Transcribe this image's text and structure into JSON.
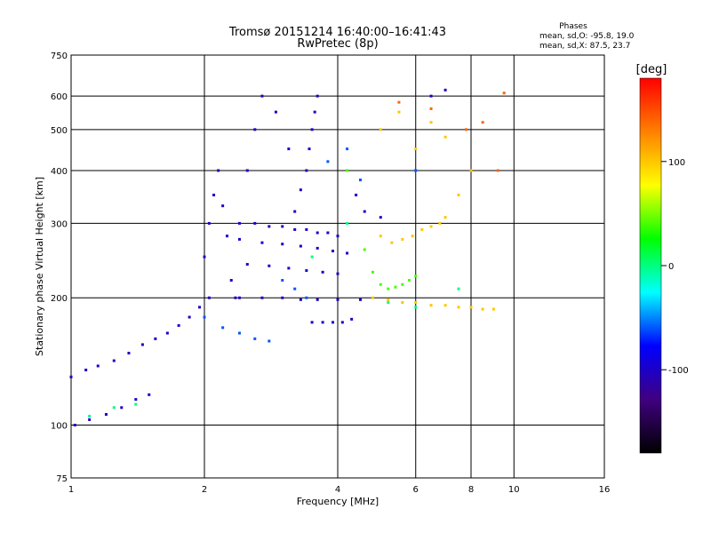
{
  "chart_data": {
    "type": "scatter",
    "title": "Tromsø 20151214 16:40:00–16:41:43",
    "subtitle": "RwPretec (8p)",
    "xlabel": "Frequency [MHz]",
    "ylabel": "Stationary phase Virtual Height [km]",
    "x_scale": "log",
    "y_scale": "log",
    "xlim": [
      1,
      16
    ],
    "ylim": [
      75,
      750
    ],
    "x_ticks": [
      1,
      2,
      4,
      6,
      8,
      10,
      16
    ],
    "y_ticks": [
      75,
      100,
      200,
      300,
      400,
      500,
      600,
      750
    ],
    "grid": true,
    "phases_header": "Phases",
    "phases_lines": [
      "mean, sd,O:  -95.8, 19.0",
      "mean, sd,X:   87.5, 23.7"
    ],
    "colorbar": {
      "label": "[deg]",
      "range": [
        -180,
        180
      ],
      "ticks": [
        100,
        0,
        -100
      ],
      "colormap": [
        "#ff0000",
        "#ff8000",
        "#ffff00",
        "#00ff00",
        "#00ffff",
        "#0000ff",
        "#400080",
        "#000000"
      ]
    },
    "series": [
      {
        "phase_deg": -100,
        "points": [
          [
            1.0,
            130
          ],
          [
            1.08,
            135
          ],
          [
            1.15,
            138
          ],
          [
            1.25,
            142
          ],
          [
            1.35,
            148
          ],
          [
            1.45,
            155
          ],
          [
            1.55,
            160
          ],
          [
            1.65,
            165
          ],
          [
            1.75,
            172
          ],
          [
            1.85,
            180
          ],
          [
            1.95,
            190
          ],
          [
            2.05,
            200
          ],
          [
            1.02,
            100
          ],
          [
            1.1,
            103
          ],
          [
            1.2,
            106
          ],
          [
            1.3,
            110
          ],
          [
            1.4,
            115
          ],
          [
            1.5,
            118
          ],
          [
            2.0,
            250
          ],
          [
            2.05,
            300
          ],
          [
            2.1,
            350
          ],
          [
            2.15,
            400
          ],
          [
            2.2,
            330
          ],
          [
            2.25,
            280
          ],
          [
            2.3,
            220
          ],
          [
            2.35,
            200
          ],
          [
            2.4,
            300
          ],
          [
            2.6,
            300
          ],
          [
            2.8,
            295
          ],
          [
            3.0,
            295
          ],
          [
            3.2,
            290
          ],
          [
            3.4,
            290
          ],
          [
            3.6,
            285
          ],
          [
            3.8,
            285
          ],
          [
            4.0,
            280
          ],
          [
            2.4,
            275
          ],
          [
            2.7,
            270
          ],
          [
            3.0,
            268
          ],
          [
            3.3,
            265
          ],
          [
            3.6,
            262
          ],
          [
            3.9,
            258
          ],
          [
            4.2,
            255
          ],
          [
            2.5,
            240
          ],
          [
            2.8,
            238
          ],
          [
            3.1,
            235
          ],
          [
            3.4,
            232
          ],
          [
            3.7,
            230
          ],
          [
            4.0,
            228
          ],
          [
            2.4,
            200
          ],
          [
            2.7,
            200
          ],
          [
            3.0,
            200
          ],
          [
            3.3,
            198
          ],
          [
            3.6,
            198
          ],
          [
            4.0,
            198
          ],
          [
            4.5,
            198
          ],
          [
            3.2,
            320
          ],
          [
            3.3,
            360
          ],
          [
            3.4,
            400
          ],
          [
            3.45,
            450
          ],
          [
            3.5,
            500
          ],
          [
            3.55,
            550
          ],
          [
            3.6,
            600
          ],
          [
            3.5,
            175
          ],
          [
            3.7,
            175
          ],
          [
            3.9,
            175
          ],
          [
            4.1,
            175
          ],
          [
            4.3,
            178
          ],
          [
            2.5,
            400
          ],
          [
            2.6,
            500
          ],
          [
            2.7,
            600
          ],
          [
            2.9,
            550
          ],
          [
            3.1,
            450
          ],
          [
            4.4,
            350
          ],
          [
            4.6,
            320
          ],
          [
            5.0,
            310
          ],
          [
            6.5,
            600
          ],
          [
            7.0,
            620
          ]
        ]
      },
      {
        "phase_deg": -60,
        "points": [
          [
            2.0,
            180
          ],
          [
            2.2,
            170
          ],
          [
            2.4,
            165
          ],
          [
            2.6,
            160
          ],
          [
            2.8,
            158
          ],
          [
            3.0,
            220
          ],
          [
            3.2,
            210
          ],
          [
            3.4,
            200
          ],
          [
            3.8,
            420
          ],
          [
            4.2,
            450
          ],
          [
            4.5,
            380
          ],
          [
            6.0,
            400
          ]
        ]
      },
      {
        "phase_deg": 0,
        "points": [
          [
            1.1,
            105
          ],
          [
            1.25,
            110
          ],
          [
            1.4,
            112
          ],
          [
            3.5,
            250
          ],
          [
            4.2,
            300
          ],
          [
            5.2,
            195
          ],
          [
            6.0,
            190
          ],
          [
            7.5,
            210
          ]
        ]
      },
      {
        "phase_deg": 40,
        "points": [
          [
            4.2,
            400
          ],
          [
            4.6,
            260
          ],
          [
            4.8,
            230
          ],
          [
            5.0,
            215
          ],
          [
            5.2,
            210
          ],
          [
            5.4,
            212
          ],
          [
            5.6,
            215
          ],
          [
            5.8,
            220
          ],
          [
            6.0,
            225
          ]
        ]
      },
      {
        "phase_deg": 100,
        "points": [
          [
            5.0,
            280
          ],
          [
            5.3,
            270
          ],
          [
            5.6,
            275
          ],
          [
            5.9,
            280
          ],
          [
            6.2,
            290
          ],
          [
            6.5,
            295
          ],
          [
            6.8,
            300
          ],
          [
            7.0,
            310
          ],
          [
            4.8,
            200
          ],
          [
            5.2,
            198
          ],
          [
            5.6,
            195
          ],
          [
            6.0,
            195
          ],
          [
            6.5,
            192
          ],
          [
            7.0,
            192
          ],
          [
            7.5,
            190
          ],
          [
            8.0,
            190
          ],
          [
            8.5,
            188
          ],
          [
            9.0,
            188
          ],
          [
            5.0,
            500
          ],
          [
            5.5,
            550
          ],
          [
            6.0,
            450
          ],
          [
            6.5,
            520
          ],
          [
            7.0,
            480
          ],
          [
            7.5,
            350
          ],
          [
            8.0,
            400
          ]
        ]
      },
      {
        "phase_deg": 140,
        "points": [
          [
            5.5,
            580
          ],
          [
            6.5,
            560
          ],
          [
            7.8,
            500
          ],
          [
            8.5,
            520
          ],
          [
            9.2,
            400
          ],
          [
            9.5,
            610
          ]
        ]
      }
    ]
  }
}
